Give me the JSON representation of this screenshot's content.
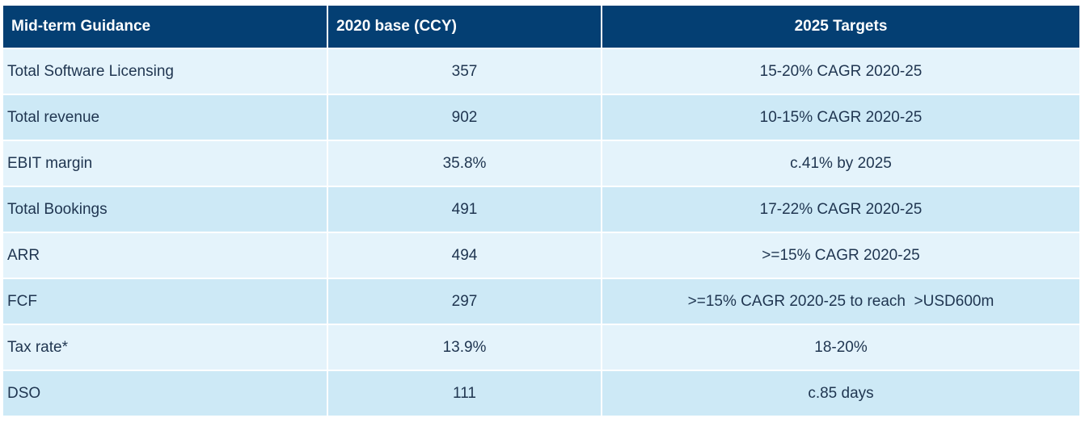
{
  "header": {
    "guidance": "Mid-term Guidance",
    "base": "2020 base (CCY)",
    "targets": "2025 Targets"
  },
  "rows": [
    {
      "label": "Total Software Licensing",
      "base": "357",
      "target": "15-20% CAGR 2020-25"
    },
    {
      "label": "Total revenue",
      "base": "902",
      "target": "10-15% CAGR 2020-25"
    },
    {
      "label": "EBIT margin",
      "base": "35.8%",
      "target": "c.41% by 2025"
    },
    {
      "label": "Total Bookings",
      "base": "491",
      "target": "17-22% CAGR 2020-25"
    },
    {
      "label": "ARR",
      "base": "494",
      "target": ">=15% CAGR 2020-25"
    },
    {
      "label": "FCF",
      "base": "297",
      "target": ">=15% CAGR 2020-25 to reach  >USD600m"
    },
    {
      "label": "Tax rate*",
      "base": "13.9%",
      "target": "18-20%"
    },
    {
      "label": "DSO",
      "base": "111",
      "target": "c.85 days"
    }
  ],
  "colors": {
    "header_bg": "#043f73",
    "header_text": "#ffffff",
    "row_light": "#e4f3fb",
    "row_dark": "#cde9f6",
    "cell_text": "#1f3550"
  }
}
